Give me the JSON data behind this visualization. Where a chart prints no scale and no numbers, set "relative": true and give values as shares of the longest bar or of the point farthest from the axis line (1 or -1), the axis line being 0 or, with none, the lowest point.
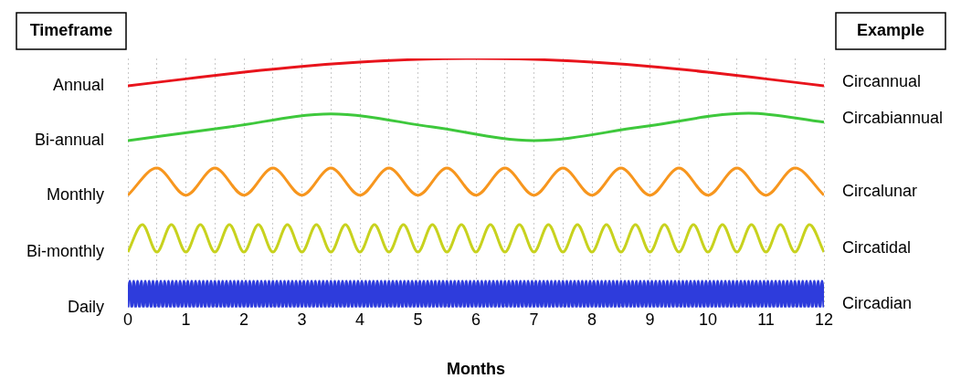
{
  "chart_data": {
    "type": "line",
    "relative": true,
    "xlabel": "Months",
    "legend_title": "Timeframe",
    "xlim": [
      0,
      12
    ],
    "xticks": [
      0,
      {
        "value": 0.5,
        "label": null
      },
      1,
      {
        "value": 1.5,
        "label": null
      },
      2,
      {
        "value": 2.5,
        "label": null
      },
      3,
      {
        "value": 3.5,
        "label": null
      },
      4,
      {
        "value": 4.5,
        "label": null
      },
      5,
      {
        "value": 5.5,
        "label": null
      },
      6,
      {
        "value": 6.5,
        "label": null
      },
      7,
      {
        "value": 7.5,
        "label": null
      },
      8,
      {
        "value": 8.5,
        "label": null
      },
      9,
      {
        "value": 9.5,
        "label": null
      },
      10,
      {
        "value": 10.5,
        "label": null
      },
      11,
      {
        "value": 11.5,
        "label": null
      },
      12
    ],
    "grid": "x",
    "marker": "none",
    "annotations": [
      "Example",
      "Circannual",
      "Circabiannual",
      "Circalunar",
      "Circatidal",
      "Circadian"
    ],
    "series": [
      {
        "name": "Annual",
        "color": "#e8141c",
        "x": [
          0,
          1,
          2,
          3,
          4,
          5,
          6,
          7,
          8,
          9,
          10,
          11,
          12
        ],
        "values": [
          0.89,
          0.918,
          0.945,
          0.968,
          0.985,
          0.996,
          1,
          0.996,
          0.985,
          0.968,
          0.945,
          0.918,
          0.89
        ]
      },
      {
        "name": "Bi-annual",
        "color": "#3ec83c",
        "x": [
          0,
          1.75,
          3.5,
          5.25,
          7,
          8.85,
          10.7,
          12
        ],
        "values": [
          0.67,
          0.725,
          0.777,
          0.725,
          0.67,
          0.725,
          0.78,
          0.744
        ]
      },
      {
        "name": "Monthly",
        "color": "#f7961e",
        "x": [
          0,
          0.5,
          1,
          1.5,
          2,
          2.5,
          3,
          3.5,
          4,
          4.5,
          5,
          5.5,
          6,
          6.5,
          7,
          7.5,
          8,
          8.5,
          9,
          9.5,
          10,
          10.5,
          11,
          11.5,
          12
        ],
        "values": [
          0.451,
          0.56,
          0.451,
          0.56,
          0.451,
          0.56,
          0.451,
          0.56,
          0.451,
          0.56,
          0.451,
          0.56,
          0.451,
          0.56,
          0.451,
          0.56,
          0.451,
          0.56,
          0.451,
          0.56,
          0.451,
          0.56,
          0.451,
          0.56,
          0.451
        ]
      },
      {
        "name": "Bi-monthly",
        "color": "#c8d21e",
        "x": [
          0,
          0.25,
          0.5,
          0.75,
          1,
          1.25,
          1.5,
          1.75,
          2,
          2.25,
          2.5,
          2.75,
          3,
          3.25,
          3.5,
          3.75,
          4,
          4.25,
          4.5,
          4.75,
          5,
          5.25,
          5.5,
          5.75,
          6,
          6.25,
          6.5,
          6.75,
          7,
          7.25,
          7.5,
          7.75,
          8,
          8.25,
          8.5,
          8.75,
          9,
          9.25,
          9.5,
          9.75,
          10,
          10.25,
          10.5,
          10.75,
          11,
          11.25,
          11.5,
          11.75,
          12
        ],
        "values": [
          0.223,
          0.333,
          0.223,
          0.333,
          0.223,
          0.333,
          0.223,
          0.333,
          0.223,
          0.333,
          0.223,
          0.333,
          0.223,
          0.333,
          0.223,
          0.333,
          0.223,
          0.333,
          0.223,
          0.333,
          0.223,
          0.333,
          0.223,
          0.333,
          0.223,
          0.333,
          0.223,
          0.333,
          0.223,
          0.333,
          0.223,
          0.333,
          0.223,
          0.333,
          0.223,
          0.333,
          0.223,
          0.333,
          0.223,
          0.333,
          0.223,
          0.333,
          0.223,
          0.333,
          0.223,
          0.333,
          0.223,
          0.333,
          0.223
        ]
      },
      {
        "name": "Daily",
        "color": "#2e3cdc",
        "x": [
          0,
          0.033,
          0.067,
          0.1,
          0.133,
          0.167,
          0.2,
          0.233,
          0.267,
          0.3,
          0.333,
          0.367,
          0.4,
          0.433,
          0.467,
          0.5,
          0.533,
          0.567,
          0.6,
          0.633,
          0.667,
          0.7,
          0.733,
          0.767,
          0.8,
          0.833,
          0.867,
          0.9,
          0.933,
          0.967,
          1,
          1.033,
          1.067,
          1.1,
          1.133,
          1.167,
          1.2,
          1.233,
          1.267,
          1.3,
          1.333,
          1.367,
          1.4,
          1.433,
          1.467,
          1.5,
          1.533,
          1.567,
          1.6,
          1.633,
          1.667,
          1.7,
          1.733,
          1.767,
          1.8,
          1.833,
          1.867,
          1.9,
          1.933,
          1.967,
          2,
          2.033,
          2.067,
          2.1,
          2.133,
          2.167,
          2.2,
          2.233,
          2.267,
          2.3,
          2.333,
          2.367,
          2.4,
          2.433,
          2.467,
          2.5,
          2.533,
          2.567,
          2.6,
          2.633,
          2.667,
          2.7,
          2.733,
          2.767,
          2.8,
          2.833,
          2.867,
          2.9,
          2.933,
          2.967,
          3,
          3.033,
          3.067,
          3.1,
          3.133,
          3.167,
          3.2,
          3.233,
          3.267,
          3.3,
          3.333,
          3.367,
          3.4,
          3.433,
          3.467,
          3.5,
          3.533,
          3.567,
          3.6,
          3.633,
          3.667,
          3.7,
          3.733,
          3.767,
          3.8,
          3.833,
          3.867,
          3.9,
          3.933,
          3.967,
          4,
          4.033,
          4.067,
          4.1,
          4.133,
          4.167,
          4.2,
          4.233,
          4.267,
          4.3,
          4.333,
          4.367,
          4.4,
          4.433,
          4.467,
          4.5,
          4.533,
          4.567,
          4.6,
          4.633,
          4.667,
          4.7,
          4.733,
          4.767,
          4.8,
          4.833,
          4.867,
          4.9,
          4.933,
          4.967,
          5,
          5.033,
          5.067,
          5.1,
          5.133,
          5.167,
          5.2,
          5.233,
          5.267,
          5.3,
          5.333,
          5.367,
          5.4,
          5.433,
          5.467,
          5.5,
          5.533,
          5.567,
          5.6,
          5.633,
          5.667,
          5.7,
          5.733,
          5.767,
          5.8,
          5.833,
          5.867,
          5.9,
          5.933,
          5.967,
          6,
          6.033,
          6.067,
          6.1,
          6.133,
          6.167,
          6.2,
          6.233,
          6.267,
          6.3,
          6.333,
          6.367,
          6.4,
          6.433,
          6.467,
          6.5,
          6.533,
          6.567,
          6.6,
          6.633,
          6.667,
          6.7,
          6.733,
          6.767,
          6.8,
          6.833,
          6.867,
          6.9,
          6.933,
          6.967,
          7,
          7.033,
          7.067,
          7.1,
          7.133,
          7.167,
          7.2,
          7.233,
          7.267,
          7.3,
          7.333,
          7.367,
          7.4,
          7.433,
          7.467,
          7.5,
          7.533,
          7.567,
          7.6,
          7.633,
          7.667,
          7.7,
          7.733,
          7.767,
          7.8,
          7.833,
          7.867,
          7.9,
          7.933,
          7.967,
          8,
          8.033,
          8.067,
          8.1,
          8.133,
          8.167,
          8.2,
          8.233,
          8.267,
          8.3,
          8.333,
          8.367,
          8.4,
          8.433,
          8.467,
          8.5,
          8.533,
          8.567,
          8.6,
          8.633,
          8.667,
          8.7,
          8.733,
          8.767,
          8.8,
          8.833,
          8.867,
          8.9,
          8.933,
          8.967,
          9,
          9.033,
          9.067,
          9.1,
          9.133,
          9.167,
          9.2,
          9.233,
          9.267,
          9.3,
          9.333,
          9.367,
          9.4,
          9.433,
          9.467,
          9.5,
          9.533,
          9.567,
          9.6,
          9.633,
          9.667,
          9.7,
          9.733,
          9.767,
          9.8,
          9.833,
          9.867,
          9.9,
          9.933,
          9.967,
          10,
          10.033,
          10.067,
          10.1,
          10.133,
          10.167,
          10.2,
          10.233,
          10.267,
          10.3,
          10.333,
          10.367,
          10.4,
          10.433,
          10.467,
          10.5,
          10.533,
          10.567,
          10.6,
          10.633,
          10.667,
          10.7,
          10.733,
          10.767,
          10.8,
          10.833,
          10.867,
          10.9,
          10.933,
          10.967,
          11,
          11.033,
          11.067,
          11.1,
          11.133,
          11.167,
          11.2,
          11.233,
          11.267,
          11.3,
          11.333,
          11.367,
          11.4,
          11.433,
          11.467,
          11.5,
          11.533,
          11.567,
          11.6,
          11.633,
          11.667,
          11.7,
          11.733,
          11.767,
          11.8,
          11.833,
          11.867,
          11.9,
          11.933,
          11.967,
          12
        ],
        "values": [
          0,
          0.106,
          0,
          0.106,
          0,
          0.106,
          0,
          0.106,
          0,
          0.106,
          0,
          0.106,
          0,
          0.106,
          0,
          0.106,
          0,
          0.106,
          0,
          0.106,
          0,
          0.106,
          0,
          0.106,
          0,
          0.106,
          0,
          0.106,
          0,
          0.106,
          0,
          0.106,
          0,
          0.106,
          0,
          0.106,
          0,
          0.106,
          0,
          0.106,
          0,
          0.106,
          0,
          0.106,
          0,
          0.106,
          0,
          0.106,
          0,
          0.106,
          0,
          0.106,
          0,
          0.106,
          0,
          0.106,
          0,
          0.106,
          0,
          0.106,
          0,
          0.106,
          0,
          0.106,
          0,
          0.106,
          0,
          0.106,
          0,
          0.106,
          0,
          0.106,
          0,
          0.106,
          0,
          0.106,
          0,
          0.106,
          0,
          0.106,
          0,
          0.106,
          0,
          0.106,
          0,
          0.106,
          0,
          0.106,
          0,
          0.106,
          0,
          0.106,
          0,
          0.106,
          0,
          0.106,
          0,
          0.106,
          0,
          0.106,
          0,
          0.106,
          0,
          0.106,
          0,
          0.106,
          0,
          0.106,
          0,
          0.106,
          0,
          0.106,
          0,
          0.106,
          0,
          0.106,
          0,
          0.106,
          0,
          0.106,
          0,
          0.106,
          0,
          0.106,
          0,
          0.106,
          0,
          0.106,
          0,
          0.106,
          0,
          0.106,
          0,
          0.106,
          0,
          0.106,
          0,
          0.106,
          0,
          0.106,
          0,
          0.106,
          0,
          0.106,
          0,
          0.106,
          0,
          0.106,
          0,
          0.106,
          0,
          0.106,
          0,
          0.106,
          0,
          0.106,
          0,
          0.106,
          0,
          0.106,
          0,
          0.106,
          0,
          0.106,
          0,
          0.106,
          0,
          0.106,
          0,
          0.106,
          0,
          0.106,
          0,
          0.106,
          0,
          0.106,
          0,
          0.106,
          0,
          0.106,
          0,
          0.106,
          0,
          0.106,
          0,
          0.106,
          0,
          0.106,
          0,
          0.106,
          0,
          0.106,
          0,
          0.106,
          0,
          0.106,
          0,
          0.106,
          0,
          0.106,
          0,
          0.106,
          0,
          0.106,
          0,
          0.106,
          0,
          0.106,
          0,
          0.106,
          0,
          0.106,
          0,
          0.106,
          0,
          0.106,
          0,
          0.106,
          0,
          0.106,
          0,
          0.106,
          0,
          0.106,
          0,
          0.106,
          0,
          0.106,
          0,
          0.106,
          0,
          0.106,
          0,
          0.106,
          0,
          0.106,
          0,
          0.106,
          0,
          0.106,
          0,
          0.106,
          0,
          0.106,
          0,
          0.106,
          0,
          0.106,
          0,
          0.106,
          0,
          0.106,
          0,
          0.106,
          0,
          0.106,
          0,
          0.106,
          0,
          0.106,
          0,
          0.106,
          0,
          0.106,
          0,
          0.106,
          0,
          0.106,
          0,
          0.106,
          0,
          0.106,
          0,
          0.106,
          0,
          0.106,
          0,
          0.106,
          0,
          0.106,
          0,
          0.106,
          0,
          0.106,
          0,
          0.106,
          0,
          0.106,
          0,
          0.106,
          0,
          0.106,
          0,
          0.106,
          0,
          0.106,
          0,
          0.106,
          0,
          0.106,
          0,
          0.106,
          0,
          0.106,
          0,
          0.106,
          0,
          0.106,
          0,
          0.106,
          0,
          0.106,
          0,
          0.106,
          0,
          0.106,
          0,
          0.106,
          0,
          0.106,
          0,
          0.106,
          0,
          0.106,
          0,
          0.106,
          0,
          0.106,
          0,
          0.106,
          0,
          0.106,
          0,
          0.106,
          0,
          0.106,
          0,
          0.106,
          0,
          0.106,
          0,
          0.106,
          0,
          0.106,
          0,
          0.106,
          0,
          0.106,
          0,
          0.106,
          0,
          0.106,
          0,
          0.106,
          0,
          0.106,
          0,
          0.106,
          0,
          0.106,
          0
        ]
      }
    ]
  }
}
